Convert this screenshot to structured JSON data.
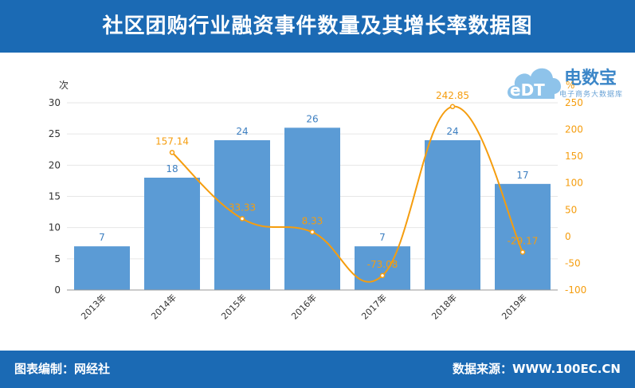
{
  "header": {
    "title": "社区团购行业融资事件数量及其增长率数据图"
  },
  "logo": {
    "main": "电数宝",
    "sub": "电子商务大数据库",
    "mark": "eDT"
  },
  "footer": {
    "left": "图表编制：网经社",
    "right": "数据来源：WWW.100EC.CN"
  },
  "colors": {
    "bar": "#5b9bd5",
    "line": "#f59d0e",
    "header": "#1b6ab4",
    "bar_label": "#3d7fc1"
  },
  "chart_data": {
    "type": "bar",
    "categories": [
      "2013年",
      "2014年",
      "2015年",
      "2016年",
      "2017年",
      "2018年",
      "2019年"
    ],
    "series": [
      {
        "type": "bar",
        "axis": "left",
        "values": [
          7,
          18,
          24,
          26,
          7,
          24,
          17
        ]
      },
      {
        "type": "line",
        "axis": "right",
        "smooth": true,
        "values": [
          null,
          157.14,
          33.33,
          8.33,
          -73.08,
          242.85,
          -29.17
        ]
      }
    ],
    "y_left": {
      "unit": "次",
      "ylim": [
        0,
        30
      ],
      "ticks": [
        0,
        5,
        10,
        15,
        20,
        25,
        30
      ]
    },
    "y_right": {
      "unit": "%",
      "ylim": [
        -100,
        250
      ],
      "ticks": [
        -100,
        -50,
        0,
        50,
        100,
        150,
        200,
        250
      ]
    },
    "grid": true,
    "data_labels": {
      "bar": [
        "7",
        "18",
        "24",
        "26",
        "7",
        "24",
        "17"
      ],
      "line": [
        "",
        "157.14",
        "33.33",
        "8.33",
        "-73.08",
        "242.85",
        "-29.17"
      ]
    }
  }
}
